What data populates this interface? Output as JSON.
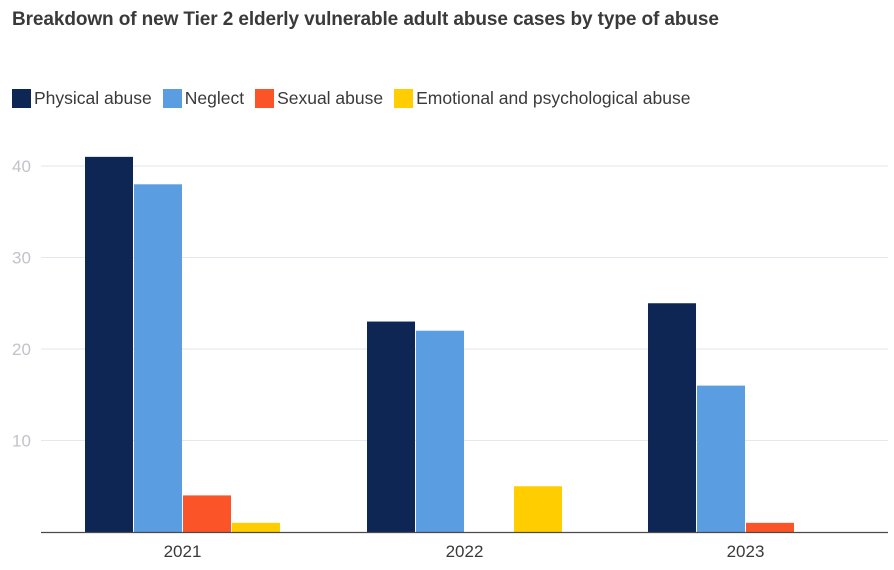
{
  "chart_data": {
    "type": "bar",
    "title": "Breakdown of new Tier 2 elderly vulnerable adult abuse cases by type of abuse",
    "categories": [
      "2021",
      "2022",
      "2023"
    ],
    "series": [
      {
        "name": "Physical abuse",
        "color": "#0d2654",
        "values": [
          41,
          23,
          25
        ]
      },
      {
        "name": "Neglect",
        "color": "#5b9de1",
        "values": [
          38,
          22,
          16
        ]
      },
      {
        "name": "Sexual abuse",
        "color": "#fb5428",
        "values": [
          4,
          0,
          1
        ]
      },
      {
        "name": "Emotional and psychological abuse",
        "color": "#ffcd00",
        "values": [
          1,
          5,
          0
        ]
      }
    ],
    "yticks": [
      10,
      20,
      30,
      40
    ],
    "ylim": [
      0,
      40
    ],
    "xlabel": "",
    "ylabel": "",
    "grid": true,
    "legend_position": "top-left"
  }
}
